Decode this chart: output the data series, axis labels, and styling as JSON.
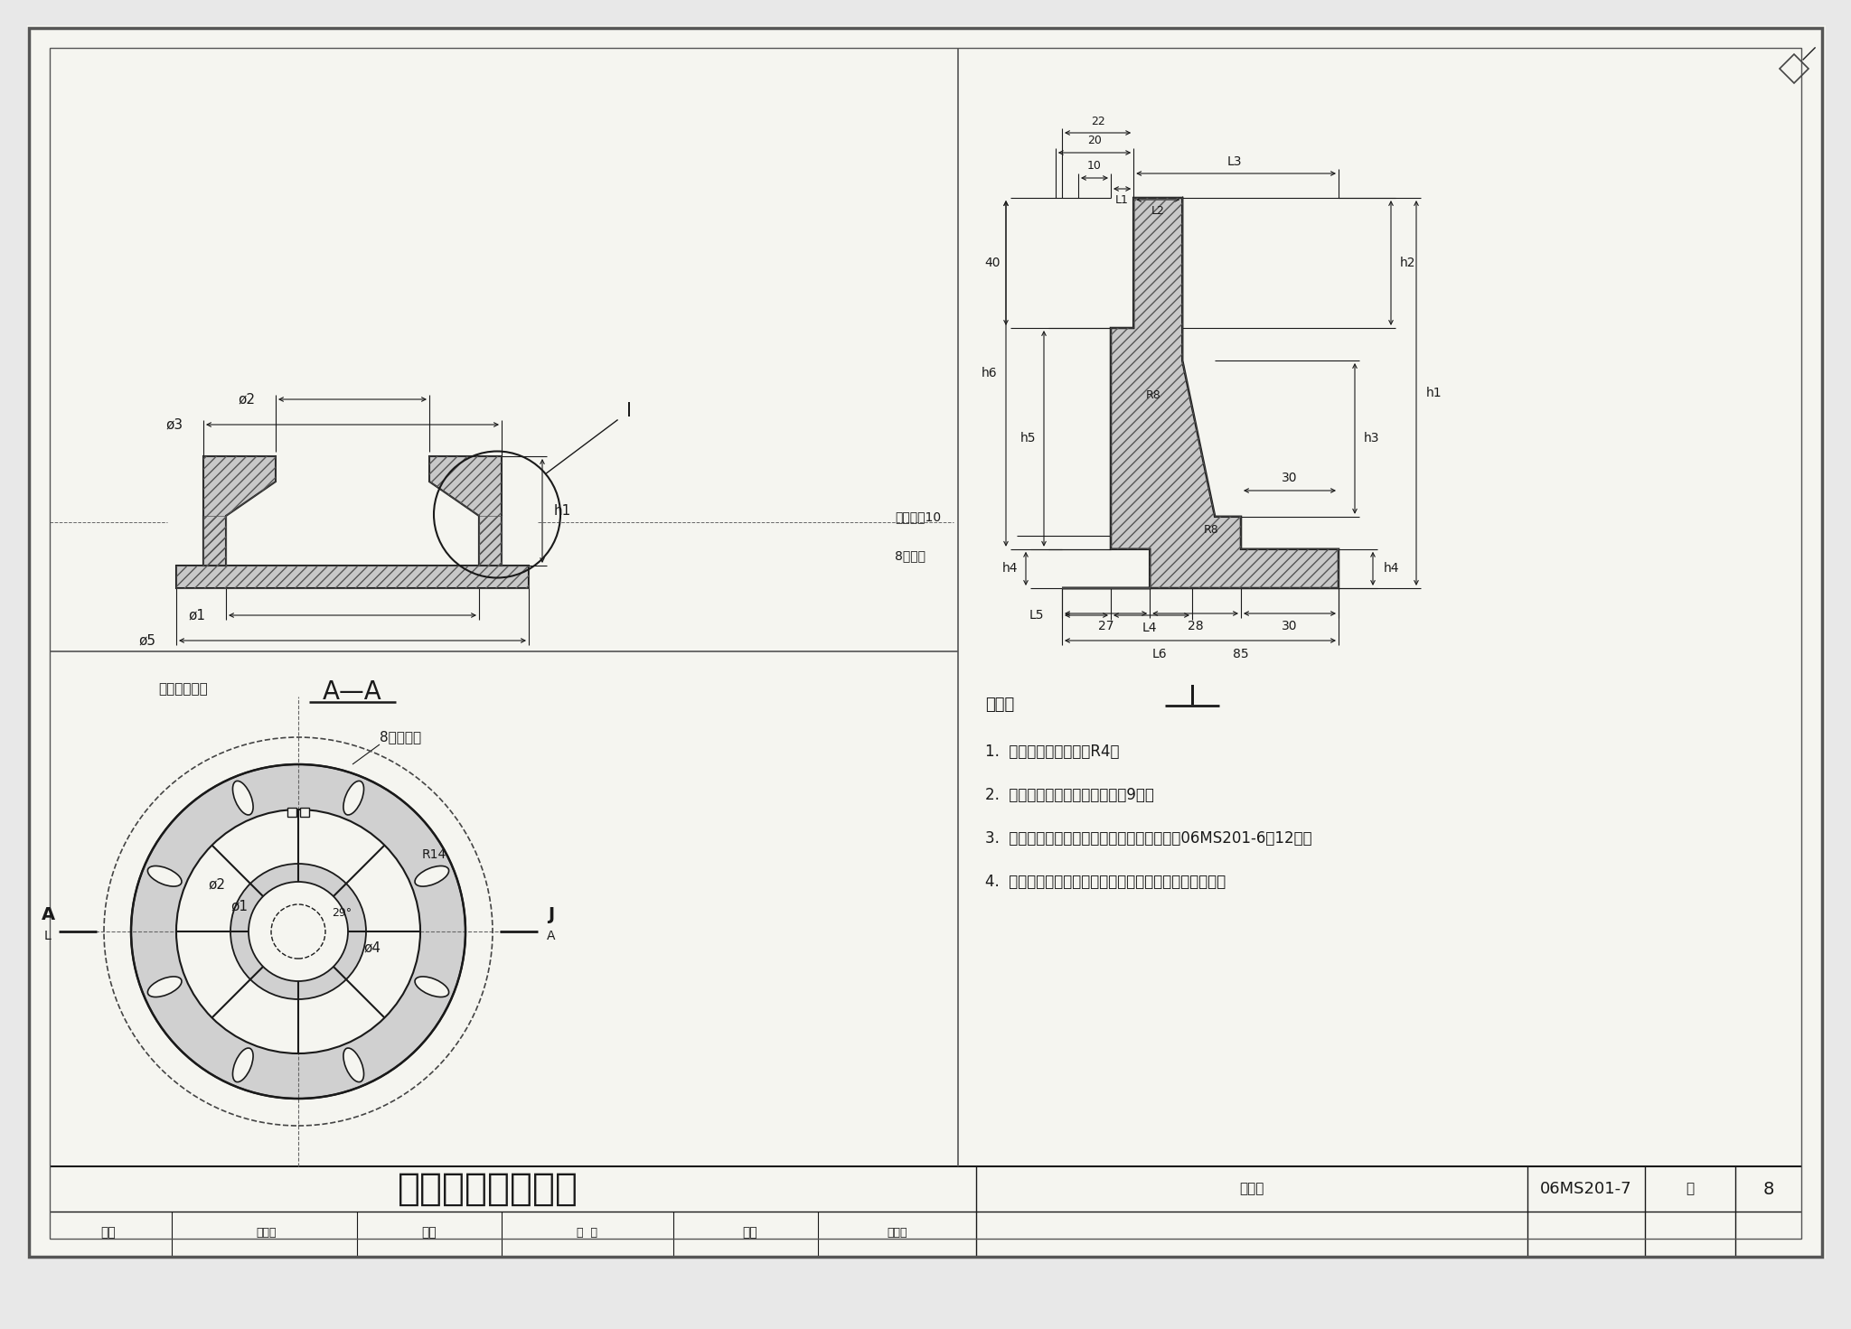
{
  "title": "铸铁双层井盖支座",
  "atlas_number": "06MS201-7",
  "page": "8",
  "bg_color": "#e8e8e8",
  "paper_color": "#f5f5f0",
  "line_color": "#1a1a1a",
  "dim_color": "#1a1a1a",
  "hatch_color": "#444444",
  "fill_color": "#c8c8c8",
  "notes_lines": [
    "说明：",
    "1.  图中未注圆角半径为R4。",
    "2.  支座配用井盖型号见本图集第9页。",
    "3.  本支座与其井盖必须有连接，其做法见图集06MS201-6第12页。",
    "4.  井盖与支座应根据直径、承载力及材料一致配套使用。"
  ]
}
